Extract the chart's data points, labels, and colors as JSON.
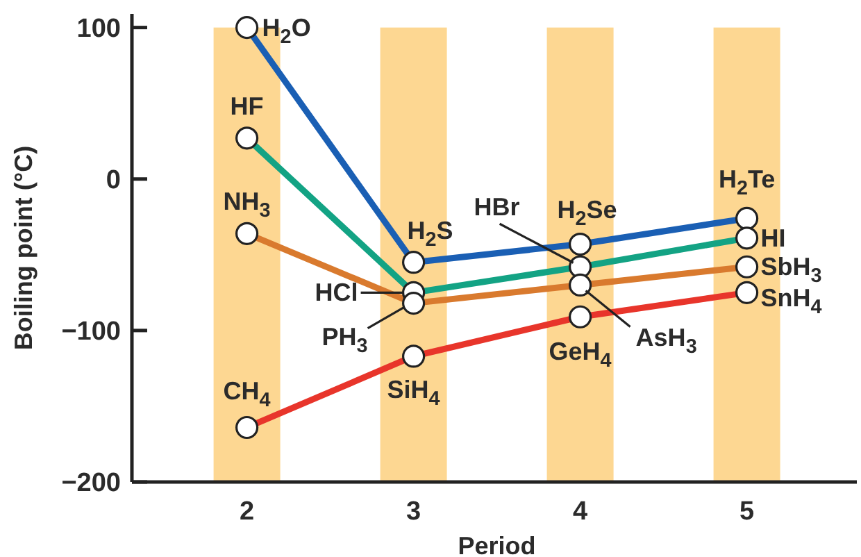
{
  "chart_data": {
    "type": "line",
    "xlabel": "Period",
    "ylabel": "Boiling point (°C)",
    "xlim": [
      1.31,
      5.66
    ],
    "xticks": [
      2,
      3,
      4,
      5
    ],
    "ylim": [
      -200,
      109
    ],
    "yticks": [
      {
        "value": -200,
        "label": "−200"
      },
      {
        "value": -100,
        "label": "−100"
      },
      0,
      100
    ],
    "grid": false,
    "marker": "circle",
    "line_style": "solid",
    "x": [
      2,
      3,
      4,
      5
    ],
    "series": [
      {
        "color": "#1a5fb4",
        "values": [
          100,
          -55,
          -43,
          -26
        ]
      },
      {
        "color": "#13a384",
        "values": [
          27,
          -75,
          -58,
          -39
        ]
      },
      {
        "color": "#d97a2e",
        "values": [
          -36,
          -82,
          -70,
          -58
        ]
      },
      {
        "color": "#e8352b",
        "values": [
          -164,
          -117,
          -91,
          -75
        ]
      }
    ],
    "bands": [
      {
        "axis": "x",
        "from": 1.8,
        "to": 2.2,
        "color": "#fdd792"
      },
      {
        "axis": "x",
        "from": 2.8,
        "to": 3.2,
        "color": "#fdd792"
      },
      {
        "axis": "x",
        "from": 3.8,
        "to": 4.2,
        "color": "#fdd792"
      },
      {
        "axis": "x",
        "from": 4.8,
        "to": 5.2,
        "color": "#fdd792"
      }
    ],
    "annotations": [
      {
        "text": "H$_{2}$O",
        "x": 2,
        "y": 100
      },
      {
        "text": "HF",
        "x": 2,
        "y": 27
      },
      {
        "text": "NH$_{3}$",
        "x": 2,
        "y": -36
      },
      {
        "text": "CH$_{4}$",
        "x": 2,
        "y": -164
      },
      {
        "text": "H$_{2}$S",
        "x": 3,
        "y": -55
      },
      {
        "text": "HCl",
        "x": 3,
        "y": -75
      },
      {
        "text": "PH$_{3}$",
        "x": 3,
        "y": -82
      },
      {
        "text": "SiH$_{4}$",
        "x": 3,
        "y": -117
      },
      {
        "text": "HBr",
        "x": 4,
        "y": -58
      },
      {
        "text": "H$_{2}$Se",
        "x": 4,
        "y": -43
      },
      {
        "text": "GeH$_{4}$",
        "x": 4,
        "y": -91
      },
      {
        "text": "AsH$_{3}$",
        "x": 4,
        "y": -70
      },
      {
        "text": "H$_{2}$Te",
        "x": 5,
        "y": -26
      },
      {
        "text": "HI",
        "x": 5,
        "y": -39
      },
      {
        "text": "SbH$_{3}$",
        "x": 5,
        "y": -58
      },
      {
        "text": "SnH$_{4}$",
        "x": 5,
        "y": -75
      }
    ]
  }
}
